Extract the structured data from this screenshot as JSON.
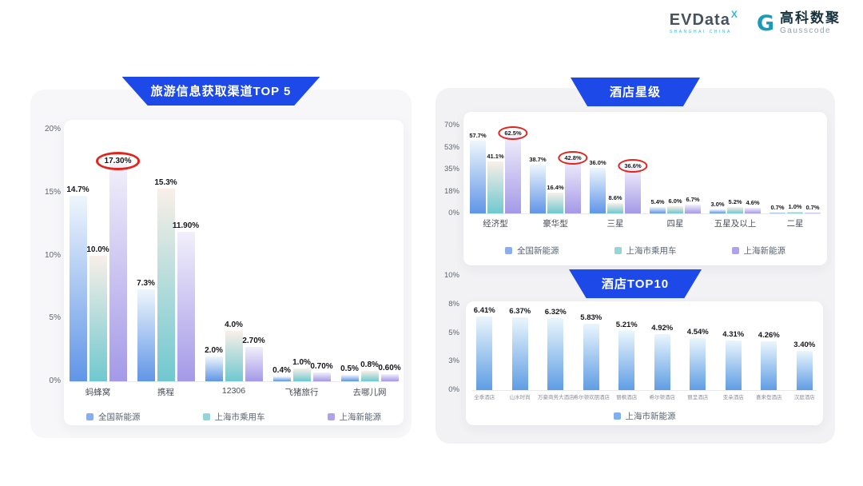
{
  "header": {
    "evdata": {
      "wordmark": "EVData",
      "sup": "X",
      "tagline": "SHANGHAI CHINA"
    },
    "gausscode": {
      "mark": "G",
      "name_cn": "高科数聚",
      "name_en": "Gausscode"
    }
  },
  "palette": {
    "banner_blue": "#1c49e8",
    "circle_red": "#e3241d",
    "series": [
      {
        "name": "全国新能源",
        "top": "#eef6fc",
        "bottom": "#6095e7",
        "legend": "#88aef1"
      },
      {
        "name": "上海市乘用车",
        "top": "#f9efe8",
        "bottom": "#6fc8cf",
        "legend": "#93d5d9"
      },
      {
        "name": "上海新能源",
        "top": "#f2effb",
        "bottom": "#a499e7",
        "legend": "#aea3eb"
      }
    ],
    "hotel_series": {
      "name": "上海市新能源",
      "top": "#eaf6fc",
      "bottom": "#5f9de4",
      "legend": "#7fb0ee"
    }
  },
  "chart_data": [
    {
      "id": "travel-channels",
      "type": "bar",
      "title": "旅游信息获取渠道TOP 5",
      "categories": [
        "蚂蜂窝",
        "携程",
        "12306",
        "飞猪旅行",
        "去哪儿网"
      ],
      "series": [
        {
          "name": "全国新能源",
          "values": [
            14.7,
            7.3,
            2.0,
            0.4,
            0.5
          ],
          "labels": [
            "14.7%",
            "7.3%",
            "2.0%",
            "0.4%",
            "0.5%"
          ]
        },
        {
          "name": "上海市乘用车",
          "values": [
            10.0,
            15.3,
            4.0,
            1.0,
            0.8
          ],
          "labels": [
            "10.0%",
            "15.3%",
            "4.0%",
            "1.0%",
            "0.8%"
          ]
        },
        {
          "name": "上海新能源",
          "values": [
            17.3,
            11.9,
            2.7,
            0.7,
            0.6
          ],
          "labels": [
            "17.30%",
            "11.90%",
            "2.70%",
            "0.70%",
            "0.60%"
          ],
          "circled": [
            true,
            false,
            false,
            false,
            false
          ]
        }
      ],
      "yticks": [
        "20%",
        "15%",
        "10%",
        "5%",
        "0%"
      ],
      "ylim": [
        0,
        20
      ],
      "grid": false,
      "legend": [
        "全国新能源",
        "上海市乘用车",
        "上海新能源"
      ],
      "legend_position": "bottom"
    },
    {
      "id": "hotel-star-rating",
      "type": "bar",
      "title": "酒店星级",
      "categories": [
        "经济型",
        "豪华型",
        "三星",
        "四星",
        "五星及以上",
        "二星"
      ],
      "series": [
        {
          "name": "全国新能源",
          "values": [
            57.7,
            38.7,
            36.0,
            5.4,
            3.0,
            0.7
          ],
          "labels": [
            "57.7%",
            "38.7%",
            "36.0%",
            "5.4%",
            "3.0%",
            "0.7%"
          ]
        },
        {
          "name": "上海市乘用车",
          "values": [
            41.1,
            16.4,
            8.6,
            6.0,
            5.2,
            1.0
          ],
          "labels": [
            "41.1%",
            "16.4%",
            "8.6%",
            "6.0%",
            "5.2%",
            "1.0%"
          ]
        },
        {
          "name": "上海新能源",
          "values": [
            62.5,
            42.8,
            36.6,
            6.7,
            4.6,
            0.7
          ],
          "labels": [
            "62.5%",
            "42.8%",
            "36.6%",
            "6.7%",
            "4.6%",
            "0.7%"
          ],
          "circled": [
            true,
            true,
            true,
            false,
            false,
            false
          ]
        }
      ],
      "yticks": [
        "70%",
        "53%",
        "35%",
        "18%",
        "0%"
      ],
      "ylim": [
        0,
        70
      ],
      "grid": false,
      "legend": [
        "全国新能源",
        "上海市乘用车",
        "上海新能源"
      ],
      "legend_position": "bottom"
    },
    {
      "id": "hotel-top10",
      "type": "bar",
      "title": "酒店TOP10",
      "categories": [
        "全季酒店",
        "山水时尚",
        "万豪商务大酒店",
        "希尔顿欢朋酒店",
        "丽枫酒店",
        "希尔顿酒店",
        "丽呈酒店",
        "亚朵酒店",
        "喜来登酒店",
        "汉庭酒店"
      ],
      "series": [
        {
          "name": "上海市新能源",
          "values": [
            6.41,
            6.37,
            6.32,
            5.83,
            5.21,
            4.92,
            4.54,
            4.31,
            4.26,
            3.4
          ],
          "labels": [
            "6.41%",
            "6.37%",
            "6.32%",
            "5.83%",
            "5.21%",
            "4.92%",
            "4.54%",
            "4.31%",
            "4.26%",
            "3.40%"
          ]
        }
      ],
      "yticks": [
        "10%",
        "8%",
        "5%",
        "3%",
        "0%"
      ],
      "ylim": [
        0,
        10
      ],
      "grid": false,
      "legend": [
        "上海市新能源"
      ],
      "legend_position": "bottom"
    }
  ]
}
